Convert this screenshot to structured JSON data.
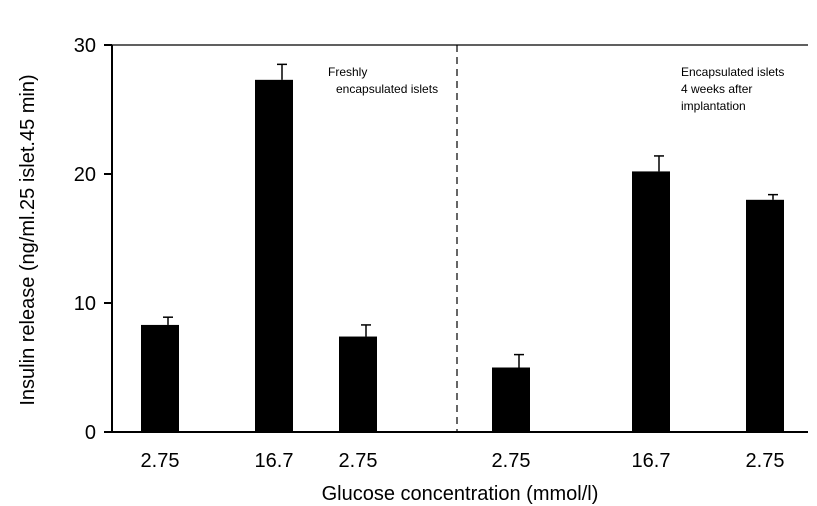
{
  "chart_data": {
    "type": "bar",
    "categories": [
      "2.75",
      "16.7",
      "2.75",
      "2.75",
      "16.7",
      "2.75"
    ],
    "series": [
      {
        "values": [
          8.3,
          27.3,
          7.4,
          5.0,
          20.2,
          18.0
        ],
        "errors": [
          0.6,
          1.2,
          0.9,
          1.0,
          1.2,
          0.4
        ]
      }
    ],
    "xlabel": "Glucose concentration (mmol/l)",
    "ylabel": "Insulin release (ng/ml.25 islet.45 min)",
    "ylim": [
      0,
      30
    ],
    "yticks": [
      "0",
      "10",
      "20",
      "30"
    ],
    "grid": false,
    "bar_color": "#000000",
    "annotations": {
      "left_line1": "Freshly",
      "left_line2": "encapsulated islets",
      "right_line1": "Encapsulated islets",
      "right_line2": "4 weeks after",
      "right_line3": "implantation"
    }
  }
}
